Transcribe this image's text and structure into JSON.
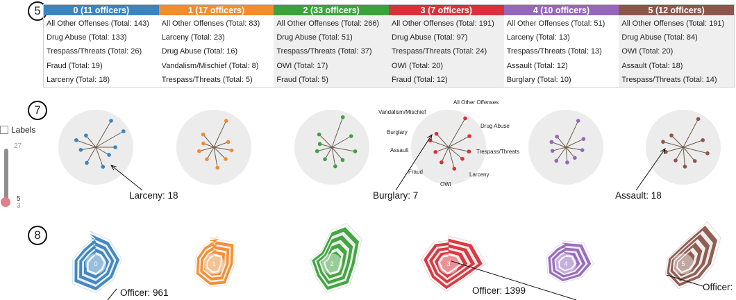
{
  "steps": {
    "s5": "5",
    "s7": "7",
    "s8": "8"
  },
  "clusters": [
    {
      "title": "0 (11 officers)",
      "color": "#3a84c0",
      "badge": "0",
      "shade": false,
      "rows": [
        "All Other Offenses (Total: 143)",
        "Drug Abuse (Total: 133)",
        "Trespass/Threats (Total: 26)",
        "Fraud (Total: 19)",
        "Larceny (Total: 18)"
      ]
    },
    {
      "title": "1 (17 officers)",
      "color": "#f28c2c",
      "badge": "1",
      "shade": false,
      "rows": [
        "All Other Offenses (Total: 83)",
        "Larceny (Total: 23)",
        "Drug Abuse (Total: 16)",
        "Vandalism/Mischief (Total: 8)",
        "Trespass/Threats (Total: 5)"
      ]
    },
    {
      "title": "2 (33 officers)",
      "color": "#3aa33a",
      "badge": "2",
      "shade": true,
      "rows": [
        "All Other Offenses (Total: 266)",
        "Drug Abuse (Total: 51)",
        "Trespass/Threats (Total: 37)",
        "OWI (Total: 17)",
        "Fraud (Total: 5)"
      ]
    },
    {
      "title": "3 (7 officers)",
      "color": "#d9303a",
      "badge": "3",
      "shade": true,
      "rows": [
        "All Other Offenses (Total: 191)",
        "Drug Abuse (Total: 97)",
        "Trespass/Threats (Total: 24)",
        "OWI (Total: 20)",
        "Fraud (Total: 12)"
      ]
    },
    {
      "title": "4 (10 officers)",
      "color": "#9467bd",
      "badge": "4",
      "shade": false,
      "rows": [
        "All Other Offenses (Total: 51)",
        "Larceny (Total: 13)",
        "Trespass/Threats (Total: 13)",
        "Assault (Total: 12)",
        "Burglary (Total: 10)"
      ]
    },
    {
      "title": "5 (12 officers)",
      "color": "#8c564b",
      "badge": "5",
      "shade": true,
      "rows": [
        "All Other Offenses (Total: 191)",
        "Drug Abuse (Total: 84)",
        "OWI (Total: 20)",
        "Assault (Total: 18)",
        "Trespass/Threats (Total: 14)"
      ]
    }
  ],
  "labels_toggle": "Labels",
  "slider": {
    "max": "27",
    "value": "5",
    "min": "3"
  },
  "radial_labels": [
    "All Other Offenses",
    "Drug Abuse",
    "Trespass/Threats",
    "Larceny",
    "OWI",
    "Fraud",
    "Assault",
    "Burglary",
    "Vandalism/Mischief"
  ],
  "callouts": {
    "c0": "Larceny: 18",
    "c3": "Burglary: 7",
    "c5": "Assault: 18"
  },
  "officers": {
    "o0": "Officer: 961",
    "o3": "Officer: 1399",
    "o5": "Officer:"
  }
}
